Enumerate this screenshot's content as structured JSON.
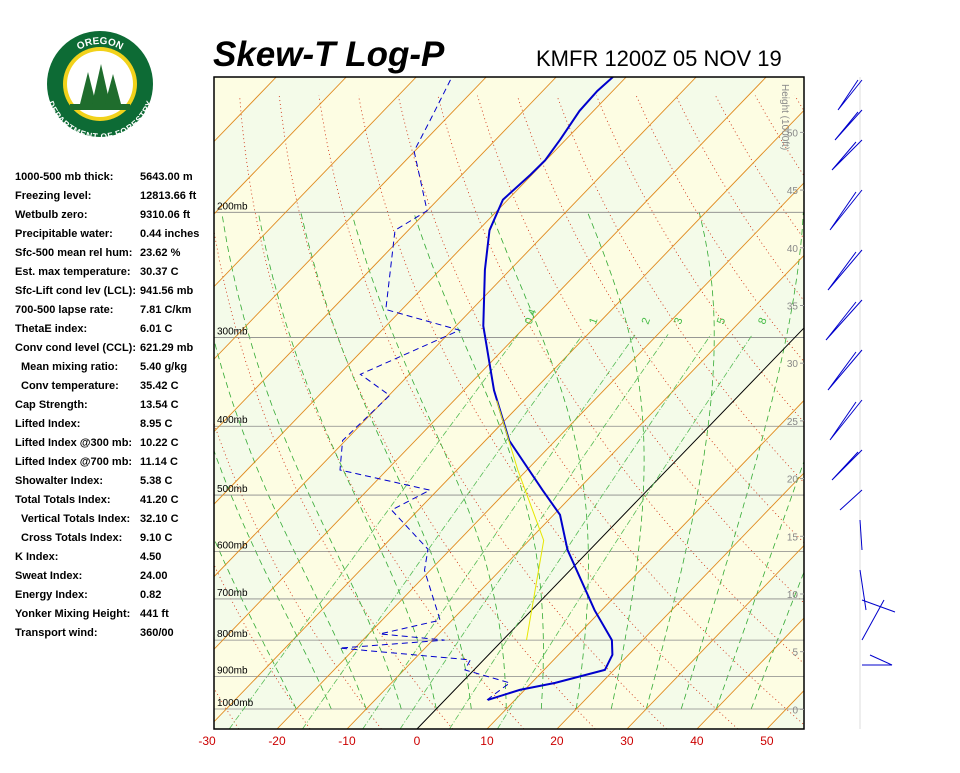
{
  "logo": {
    "top": "OREGON",
    "bottom": "DEPARTMENT OF FORESTRY"
  },
  "stats": [
    {
      "label": "1000-500 mb thick:",
      "value": "5643.00 m"
    },
    {
      "label": "Freezing level:",
      "value": "12813.66 ft"
    },
    {
      "label": "Wetbulb zero:",
      "value": "9310.06 ft"
    },
    {
      "label": "Precipitable water:",
      "value": "0.44 inches"
    },
    {
      "label": "Sfc-500 mean rel hum:",
      "value": "23.62 %"
    },
    {
      "label": "Est. max temperature:",
      "value": "30.37 C"
    },
    {
      "label": "Sfc-Lift cond lev (LCL):",
      "value": "941.56 mb"
    },
    {
      "label": "700-500 lapse rate:",
      "value": "7.81 C/km"
    },
    {
      "label": "ThetaE index:",
      "value": "6.01 C"
    },
    {
      "label": "Conv cond level (CCL):",
      "value": "621.29 mb"
    },
    {
      "label": "Mean mixing ratio:",
      "value": "5.40 g/kg",
      "indent": true
    },
    {
      "label": "Conv temperature:",
      "value": "35.42 C",
      "indent": true
    },
    {
      "label": "Cap Strength:",
      "value": "13.54 C"
    },
    {
      "label": "Lifted Index:",
      "value": "8.95 C"
    },
    {
      "label": "Lifted Index @300 mb:",
      "value": "10.22 C"
    },
    {
      "label": "Lifted Index @700 mb:",
      "value": "11.14 C"
    },
    {
      "label": "Showalter Index:",
      "value": "5.38 C"
    },
    {
      "label": "Total Totals Index:",
      "value": "41.20 C"
    },
    {
      "label": "Vertical Totals Index:",
      "value": "32.10 C",
      "indent": true
    },
    {
      "label": "Cross Totals Index:",
      "value": "9.10 C",
      "indent": true
    },
    {
      "label": "K Index:",
      "value": "4.50"
    },
    {
      "label": "Sweat Index:",
      "value": "24.00"
    },
    {
      "label": "Energy Index:",
      "value": "0.82"
    },
    {
      "label": "Yonker Mixing Height:",
      "value": "441 ft"
    },
    {
      "label": "Transport wind:",
      "value": "360/00"
    }
  ],
  "chart_data": {
    "type": "skewt",
    "title": "Skew-T Log-P",
    "subtitle": "KMFR 1200Z 05 NOV 19",
    "xlim": [
      -29,
      55.3
    ],
    "xticks": [
      -30,
      -20,
      -10,
      0,
      10,
      20,
      30,
      40,
      50
    ],
    "ylim": [
      1067,
      129
    ],
    "log_y": true,
    "yticks": [
      {
        "value": 1000,
        "label": "1000mb"
      },
      {
        "value": 900,
        "label": "900mb"
      },
      {
        "value": 800,
        "label": "800mb"
      },
      {
        "value": 700,
        "label": "700mb"
      },
      {
        "value": 600,
        "label": "600mb"
      },
      {
        "value": 500,
        "label": "500mb"
      },
      {
        "value": 400,
        "label": "400mb"
      },
      {
        "value": 300,
        "label": "300mb"
      },
      {
        "value": 200,
        "label": "200mb"
      }
    ],
    "y2label": "Height (1000ft)",
    "y2lim": [
      -1.7,
      54.8
    ],
    "y2ticks": [
      0,
      5,
      10,
      15,
      20,
      25,
      30,
      35,
      40,
      45,
      50
    ],
    "mixing_ratios": [
      0.4,
      1,
      2,
      3,
      5,
      8
    ],
    "series": [
      {
        "color": "#0000cc",
        "dash": false,
        "pressure": [
          971,
          940,
          919,
          881,
          839,
          800,
          726,
          597,
          533,
          492,
          419,
          356,
          289,
          241,
          212,
          192,
          177,
          169,
          158,
          144,
          135,
          129
        ],
        "values": [
          6.1,
          9.3,
          13.4,
          18.7,
          17.7,
          15.6,
          9.0,
          -3.2,
          -9.1,
          -15.0,
          -26.6,
          -35.7,
          -46.1,
          -53.6,
          -58.4,
          -60.7,
          -60.2,
          -60.1,
          -60.8,
          -62.0,
          -62.2,
          -61.9
        ]
      },
      {
        "color": "#0000cc",
        "dash": true,
        "pressure": [
          971,
          919,
          881,
          853,
          821,
          800,
          784,
          750,
          638,
          596,
          525,
          492,
          461,
          419,
          362,
          338,
          293,
          274,
          241,
          212,
          199,
          164,
          148,
          129
        ],
        "values": [
          6.0,
          6.9,
          -1.3,
          -1.9,
          -22.2,
          -8.3,
          -18.4,
          -11.7,
          -20.8,
          -23.2,
          -33.8,
          -31.1,
          -46.7,
          -50.4,
          -49.9,
          -57.0,
          -48.9,
          -62.3,
          -67.1,
          -71.9,
          -70.0,
          -80.1,
          -82.1,
          -84.9
        ]
      },
      {
        "color": "#e6e600",
        "dash": false,
        "pressure": [
          800,
          579,
          461,
          368
        ],
        "values": [
          3.4,
          -7.9,
          -21.3,
          -33.9
        ]
      }
    ]
  }
}
